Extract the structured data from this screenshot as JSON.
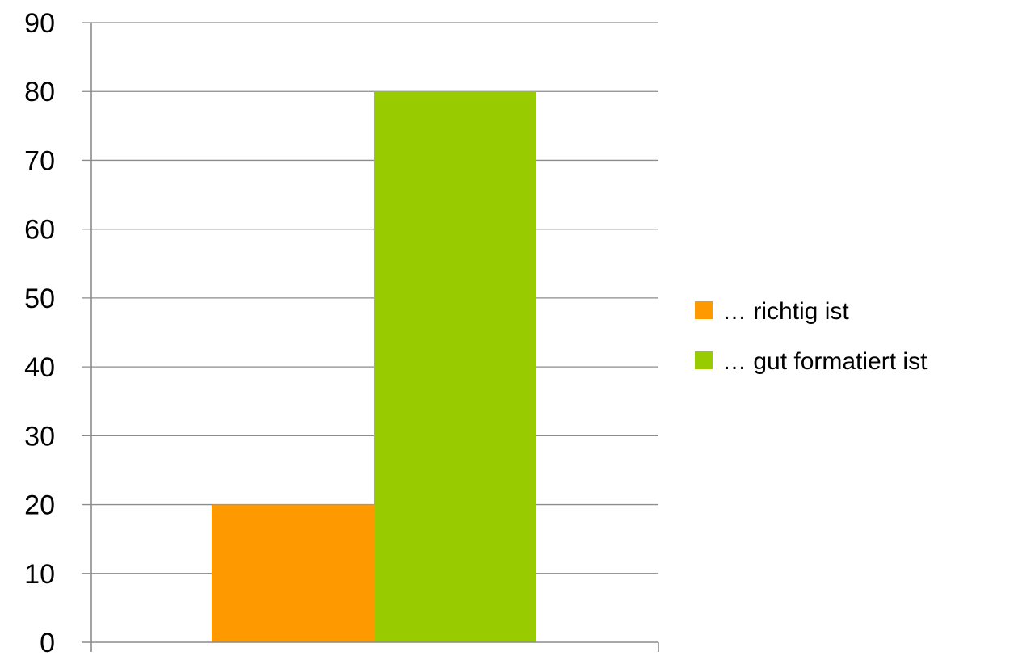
{
  "chart_data": {
    "type": "bar",
    "title": "",
    "xlabel": "",
    "ylabel": "",
    "categories": [
      ""
    ],
    "series": [
      {
        "name": "… richtig ist",
        "values": [
          20
        ],
        "color": "#FF9900"
      },
      {
        "name": "… gut formatiert ist",
        "values": [
          80
        ],
        "color": "#99CC00"
      }
    ],
    "ylim": [
      0,
      90
    ],
    "yticks": [
      0,
      10,
      20,
      30,
      40,
      50,
      60,
      70,
      80,
      90
    ],
    "grid": true,
    "legend_position": "right"
  },
  "colors": {
    "gridline": "#8C8C8C",
    "text": "#000000"
  }
}
